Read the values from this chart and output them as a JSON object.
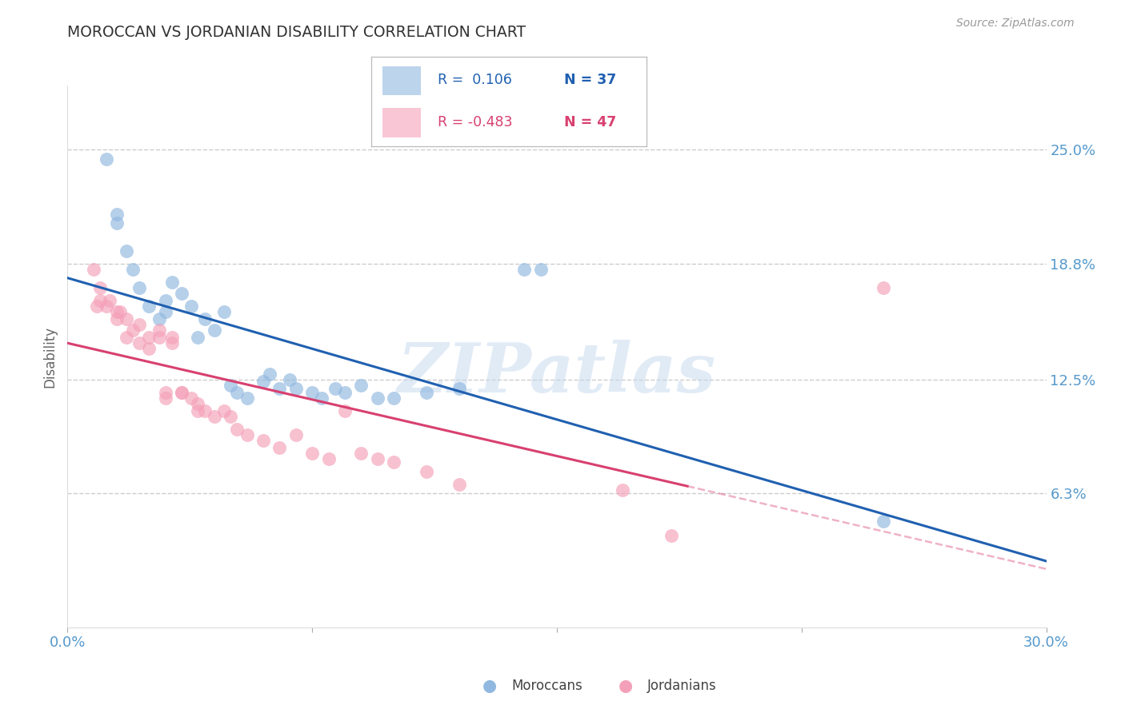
{
  "title": "MOROCCAN VS JORDANIAN DISABILITY CORRELATION CHART",
  "source": "Source: ZipAtlas.com",
  "ylabel": "Disability",
  "ytick_labels": [
    "25.0%",
    "18.8%",
    "12.5%",
    "6.3%"
  ],
  "ytick_values": [
    0.25,
    0.188,
    0.125,
    0.063
  ],
  "xtick_labels_left": "0.0%",
  "xtick_labels_right": "30.0%",
  "xlim": [
    0.0,
    0.3
  ],
  "ylim": [
    -0.01,
    0.285
  ],
  "watermark": "ZIPatlas",
  "moroccan_color": "#90B8E0",
  "jordanian_color": "#F4A0B8",
  "moroccan_line_color": "#2060B0",
  "jordanian_line_color": "#D84070",
  "moroccan_x": [
    0.012,
    0.015,
    0.015,
    0.018,
    0.02,
    0.022,
    0.025,
    0.028,
    0.03,
    0.03,
    0.032,
    0.035,
    0.038,
    0.04,
    0.042,
    0.045,
    0.048,
    0.05,
    0.052,
    0.055,
    0.06,
    0.062,
    0.065,
    0.068,
    0.07,
    0.075,
    0.078,
    0.082,
    0.085,
    0.09,
    0.095,
    0.1,
    0.11,
    0.12,
    0.14,
    0.145,
    0.25
  ],
  "moroccan_y": [
    0.245,
    0.215,
    0.21,
    0.195,
    0.185,
    0.175,
    0.165,
    0.158,
    0.168,
    0.162,
    0.178,
    0.172,
    0.165,
    0.148,
    0.158,
    0.152,
    0.162,
    0.122,
    0.118,
    0.115,
    0.124,
    0.128,
    0.12,
    0.125,
    0.12,
    0.118,
    0.115,
    0.12,
    0.118,
    0.122,
    0.115,
    0.115,
    0.118,
    0.12,
    0.185,
    0.185,
    0.048
  ],
  "jordanian_x": [
    0.008,
    0.009,
    0.01,
    0.01,
    0.012,
    0.013,
    0.015,
    0.015,
    0.016,
    0.018,
    0.018,
    0.02,
    0.022,
    0.022,
    0.025,
    0.025,
    0.028,
    0.028,
    0.03,
    0.03,
    0.032,
    0.032,
    0.035,
    0.035,
    0.038,
    0.04,
    0.04,
    0.042,
    0.045,
    0.048,
    0.05,
    0.052,
    0.055,
    0.06,
    0.065,
    0.07,
    0.075,
    0.08,
    0.085,
    0.09,
    0.095,
    0.1,
    0.11,
    0.12,
    0.17,
    0.185,
    0.25
  ],
  "jordanian_y": [
    0.185,
    0.165,
    0.175,
    0.168,
    0.165,
    0.168,
    0.158,
    0.162,
    0.162,
    0.158,
    0.148,
    0.152,
    0.145,
    0.155,
    0.148,
    0.142,
    0.152,
    0.148,
    0.118,
    0.115,
    0.145,
    0.148,
    0.118,
    0.118,
    0.115,
    0.112,
    0.108,
    0.108,
    0.105,
    0.108,
    0.105,
    0.098,
    0.095,
    0.092,
    0.088,
    0.095,
    0.085,
    0.082,
    0.108,
    0.085,
    0.082,
    0.08,
    0.075,
    0.068,
    0.065,
    0.04,
    0.175
  ],
  "background_color": "#FFFFFF",
  "grid_color": "#CCCCCC",
  "title_color": "#333333",
  "source_color": "#999999",
  "axis_color": "#5599CC",
  "legend_moroccan_r": "R =  0.106",
  "legend_moroccan_n": "N = 37",
  "legend_jordanian_r": "R = -0.483",
  "legend_jordanian_n": "N = 47",
  "bottom_legend_moroccan": "Moroccans",
  "bottom_legend_jordanian": "Jordanians"
}
